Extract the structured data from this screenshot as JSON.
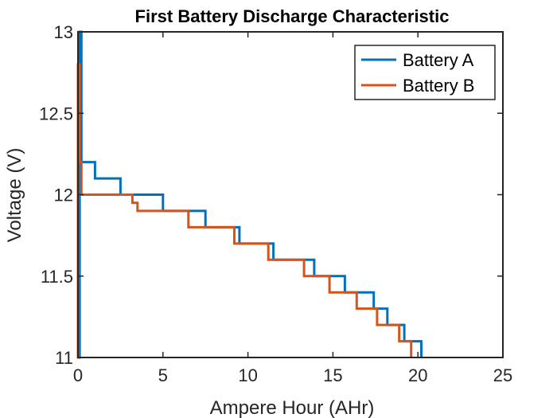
{
  "chart_data": {
    "type": "line",
    "title": "First Battery Discharge Characteristic",
    "xlabel": "Ampere Hour (AHr)",
    "ylabel": "Voltage (V)",
    "xlim": [
      0,
      25
    ],
    "ylim": [
      11,
      13
    ],
    "xticks": [
      "0",
      "5",
      "10",
      "15",
      "20",
      "25"
    ],
    "yticks": [
      "11",
      "11.5",
      "12",
      "12.5",
      "13"
    ],
    "grid": false,
    "legend_position": "top-right",
    "series": [
      {
        "name": "Battery A",
        "color": "#0072BD",
        "x": [
          0.05,
          0.1,
          0.1,
          0.2,
          0.2,
          0.2,
          1.0,
          1.0,
          2.5,
          2.5,
          5.0,
          5.0,
          7.5,
          7.5,
          9.5,
          9.5,
          11.5,
          11.5,
          13.9,
          13.9,
          15.7,
          15.7,
          17.4,
          17.4,
          18.2,
          18.2,
          19.2,
          19.2,
          20.2,
          20.2
        ],
        "y": [
          11.0,
          11.0,
          13.0,
          13.0,
          12.2,
          12.2,
          12.2,
          12.1,
          12.1,
          12.0,
          12.0,
          11.9,
          11.9,
          11.8,
          11.8,
          11.7,
          11.7,
          11.6,
          11.6,
          11.5,
          11.5,
          11.4,
          11.4,
          11.3,
          11.3,
          11.2,
          11.2,
          11.1,
          11.1,
          11.0
        ]
      },
      {
        "name": "Battery B",
        "color": "#D95319",
        "x": [
          0.05,
          0.0,
          0.0,
          0.1,
          0.1,
          0.2,
          0.2,
          0.2,
          3.2,
          3.2,
          3.5,
          3.5,
          6.5,
          6.5,
          9.2,
          9.2,
          11.2,
          11.2,
          13.3,
          13.3,
          14.8,
          14.8,
          16.4,
          16.4,
          17.6,
          17.6,
          18.9,
          18.9,
          19.6,
          19.6
        ],
        "y": [
          11.0,
          11.0,
          12.8,
          12.8,
          12.2,
          12.2,
          12.0,
          12.0,
          12.0,
          11.95,
          11.95,
          11.9,
          11.9,
          11.8,
          11.8,
          11.7,
          11.7,
          11.6,
          11.6,
          11.5,
          11.5,
          11.4,
          11.4,
          11.3,
          11.3,
          11.2,
          11.2,
          11.1,
          11.1,
          11.0
        ]
      }
    ]
  }
}
